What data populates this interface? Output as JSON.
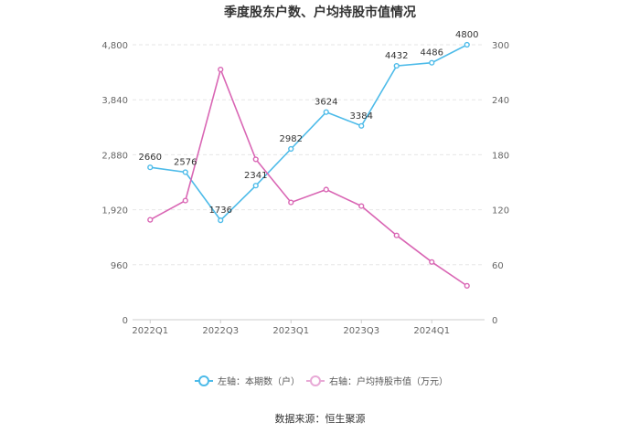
{
  "chart_data": {
    "type": "line",
    "title": "季度股东户数、户均持股市值情况",
    "source": "数据来源：恒生聚源",
    "categories": [
      "2022Q1",
      "2022Q2",
      "2022Q3",
      "2022Q4",
      "2023Q1",
      "2023Q2",
      "2023Q3",
      "2023Q4",
      "2024Q1",
      "2024Q2"
    ],
    "x_tick_labels": [
      "2022Q1",
      "2022Q3",
      "2023Q1",
      "2023Q3",
      "2024Q1"
    ],
    "left_axis": {
      "ticks": [
        "0",
        "960",
        "1,920",
        "2,880",
        "3,840",
        "4,800"
      ],
      "ylim": [
        0,
        4800
      ]
    },
    "right_axis": {
      "ticks": [
        "0",
        "60",
        "120",
        "180",
        "240",
        "300"
      ],
      "ylim": [
        0,
        300
      ]
    },
    "series": [
      {
        "name": "左轴：本期数（户）",
        "axis": "left",
        "color": "#4dbbe9",
        "values": [
          2660,
          2576,
          1736,
          2341,
          2982,
          3624,
          3384,
          4432,
          4486,
          4800
        ],
        "labels": [
          "2660",
          "2576",
          "1736",
          "2341",
          "2982",
          "3624",
          "3384",
          "4432",
          "4486",
          "4800"
        ]
      },
      {
        "name": "右轴：户均持股市值（万元）",
        "axis": "right",
        "color": "#d966b4",
        "values": [
          109,
          130,
          273,
          175,
          128,
          142,
          124,
          92,
          63,
          37
        ]
      }
    ],
    "grid": true,
    "legend_position": "bottom"
  }
}
